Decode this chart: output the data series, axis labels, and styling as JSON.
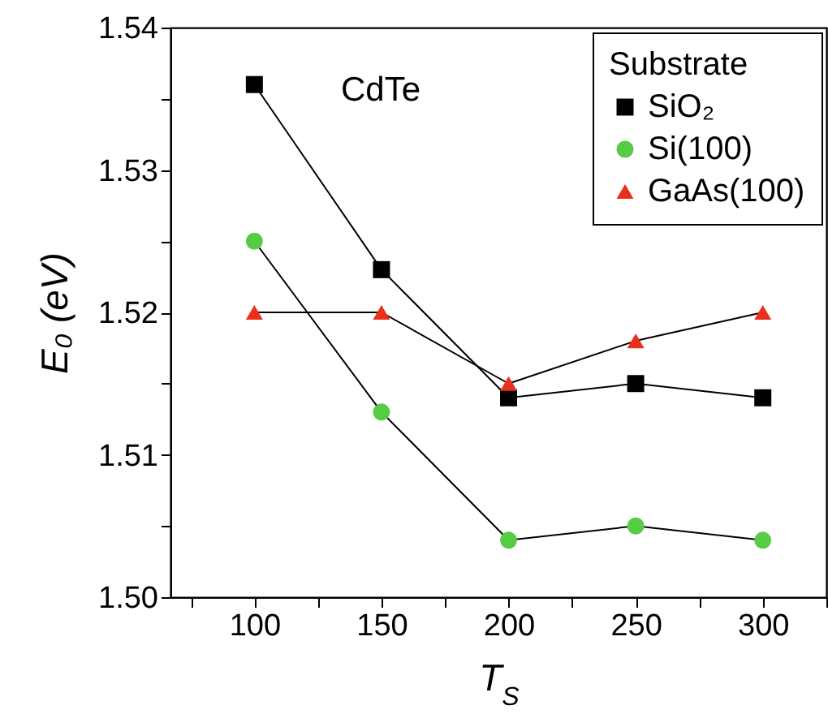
{
  "chart_data": {
    "type": "line",
    "xlabel": "T$_{S}$",
    "ylabel": "E₀ (eV)",
    "legend_title": "Substrate",
    "annotations": [
      "CdTe"
    ],
    "x": [
      100,
      150,
      200,
      250,
      300
    ],
    "series": [
      {
        "name": "SiO₂",
        "color": "#000000",
        "marker": "square",
        "values": [
          1.536,
          1.523,
          1.514,
          1.515,
          1.514
        ]
      },
      {
        "name": "Si(100)",
        "color": "#55cc44",
        "marker": "circle",
        "values": [
          1.525,
          1.513,
          1.504,
          1.505,
          1.504
        ]
      },
      {
        "name": "GaAs(100)",
        "color": "#e8301c",
        "marker": "triangle",
        "values": [
          1.52,
          1.52,
          1.515,
          1.518,
          1.52
        ]
      }
    ],
    "xlim": [
      67,
      325
    ],
    "xticks": [
      {
        "value": 75,
        "label": null
      },
      100,
      {
        "value": 125,
        "label": null
      },
      150,
      {
        "value": 175,
        "label": null
      },
      200,
      {
        "value": 225,
        "label": null
      },
      250,
      {
        "value": 275,
        "label": null
      },
      300,
      {
        "value": 325,
        "label": null
      }
    ],
    "ylim": [
      1.5,
      1.54
    ],
    "yticks": [
      {
        "value": 1.5,
        "label": "1.50"
      },
      {
        "value": 1.505,
        "label": null
      },
      {
        "value": 1.51,
        "label": "1.51"
      },
      {
        "value": 1.515,
        "label": null
      },
      {
        "value": 1.52,
        "label": "1.52"
      },
      {
        "value": 1.525,
        "label": null
      },
      {
        "value": 1.53,
        "label": "1.53"
      },
      {
        "value": 1.535,
        "label": null
      },
      {
        "value": 1.54,
        "label": "1.54"
      }
    ],
    "grid": false,
    "legend": "top right",
    "line_style": "solid"
  }
}
